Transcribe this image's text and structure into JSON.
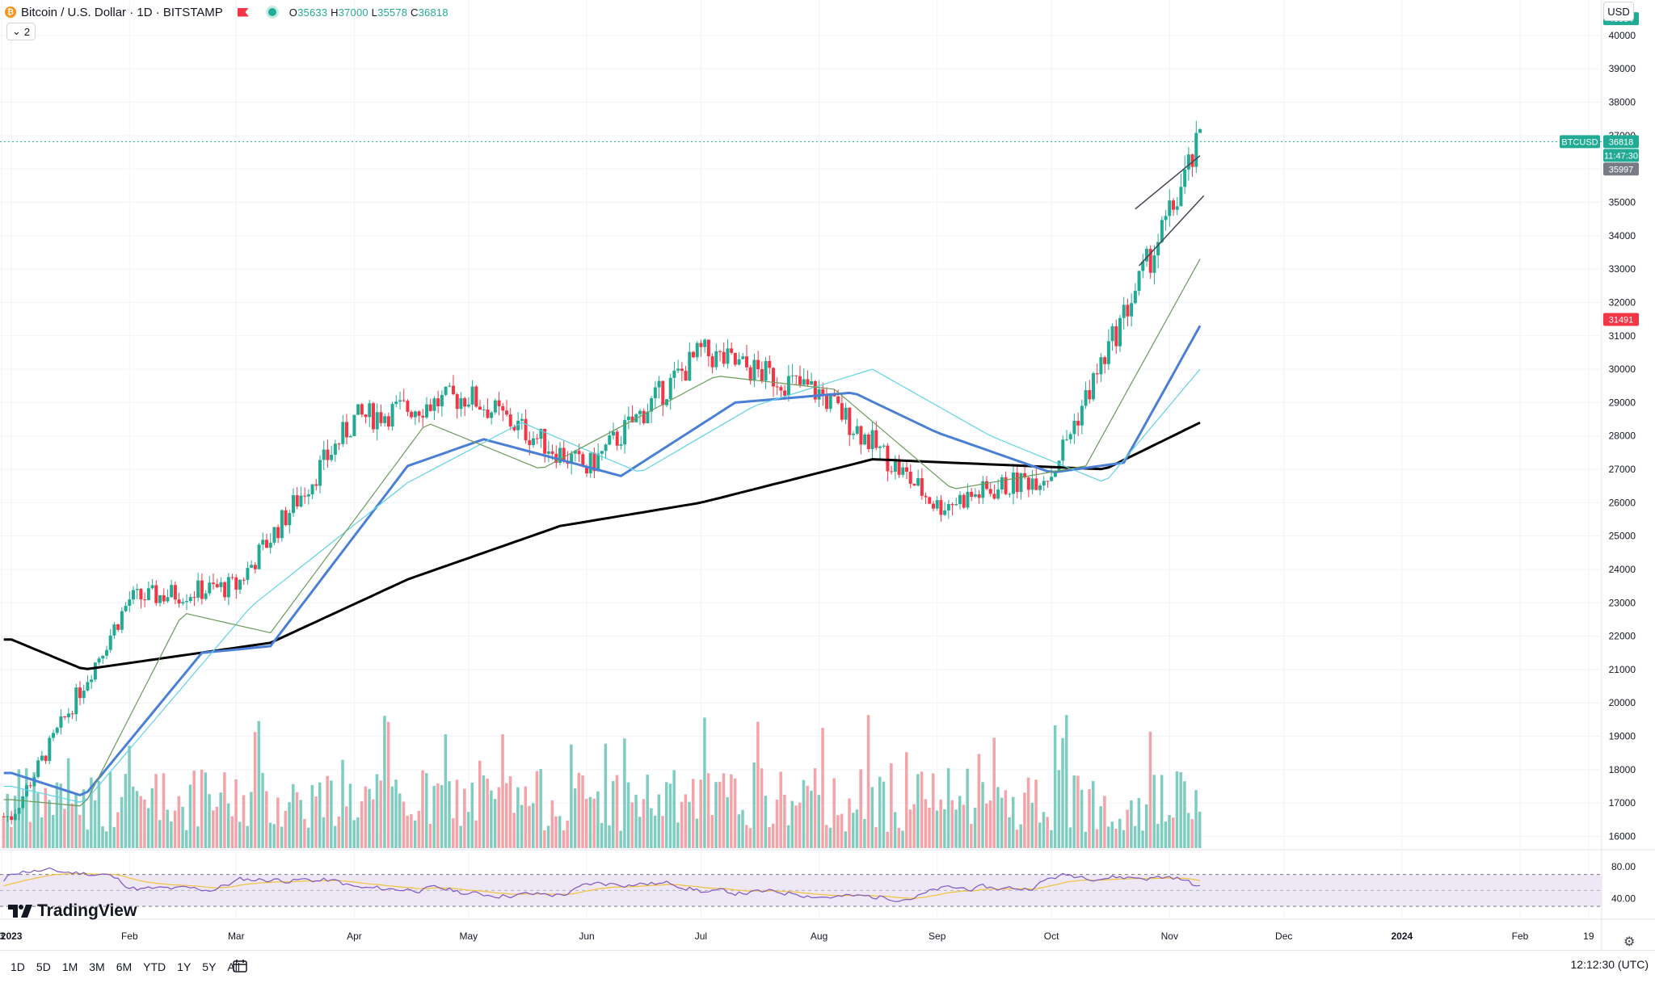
{
  "header": {
    "symbol_title": "Bitcoin / U.S. Dollar · 1D · BITSTAMP",
    "ohlc": {
      "o_label": "O",
      "o": "35633",
      "h_label": "H",
      "h": "37000",
      "l_label": "L",
      "l": "35578",
      "c_label": "C",
      "c": "36818"
    },
    "indicators_count": "2",
    "currency_button": "USD"
  },
  "chart_data": {
    "type": "candlestick",
    "symbol": "BTCUSD",
    "price_axis_ticks": [
      16000,
      17000,
      18000,
      19000,
      20000,
      21000,
      22000,
      23000,
      24000,
      25000,
      26000,
      27000,
      28000,
      29000,
      30000,
      31000,
      32000,
      33000,
      34000,
      35000,
      36000,
      37000,
      38000,
      39000,
      40000
    ],
    "ylim": [
      15600,
      40700
    ],
    "x_axis_labels": [
      "3",
      "2023",
      "Feb",
      "Mar",
      "Apr",
      "May",
      "Jun",
      "Jul",
      "Aug",
      "Sep",
      "Oct",
      "Nov",
      "Dec",
      "2024",
      "Feb",
      "19"
    ],
    "price_labels": [
      {
        "text": "40504",
        "color": "#22ab94"
      },
      {
        "text": "BTCUSD",
        "color": "#22ab94"
      },
      {
        "text": "36818",
        "color": "#22ab94"
      },
      {
        "text": "11:47:30",
        "color": "#22ab94"
      },
      {
        "text": "35997",
        "color": "#787b86"
      },
      {
        "text": "31491",
        "color": "#f23645"
      }
    ],
    "last_price": 36818,
    "price_series_monthly_closes": [
      {
        "date": "2023-01-01",
        "value": 16600
      },
      {
        "date": "2023-02-01",
        "value": 23100
      },
      {
        "date": "2023-03-01",
        "value": 23500
      },
      {
        "date": "2023-04-01",
        "value": 28500
      },
      {
        "date": "2023-05-01",
        "value": 29200
      },
      {
        "date": "2023-06-01",
        "value": 27000
      },
      {
        "date": "2023-07-01",
        "value": 30500
      },
      {
        "date": "2023-08-01",
        "value": 29300
      },
      {
        "date": "2023-09-01",
        "value": 25900
      },
      {
        "date": "2023-10-01",
        "value": 26900
      },
      {
        "date": "2023-11-01",
        "value": 34600
      },
      {
        "date": "2023-11-09",
        "value": 36818
      }
    ],
    "moving_averages": [
      {
        "name": "",
        "color": "#000000",
        "points": [
          {
            "date": "2023-01-01",
            "value": 21900
          },
          {
            "date": "2023-01-20",
            "value": 21000
          },
          {
            "date": "2023-03-10",
            "value": 21800
          },
          {
            "date": "2023-04-15",
            "value": 23700
          },
          {
            "date": "2023-05-25",
            "value": 25300
          },
          {
            "date": "2023-07-01",
            "value": 26000
          },
          {
            "date": "2023-08-15",
            "value": 27300
          },
          {
            "date": "2023-10-15",
            "value": 27000
          },
          {
            "date": "2023-11-09",
            "value": 28400
          }
        ]
      },
      {
        "name": "",
        "color": "#4a7fd6",
        "points": [
          {
            "date": "2023-01-01",
            "value": 17900
          },
          {
            "date": "2023-01-20",
            "value": 17200
          },
          {
            "date": "2023-02-20",
            "value": 21500
          },
          {
            "date": "2023-03-10",
            "value": 21700
          },
          {
            "date": "2023-04-15",
            "value": 27100
          },
          {
            "date": "2023-05-05",
            "value": 27900
          },
          {
            "date": "2023-06-10",
            "value": 26800
          },
          {
            "date": "2023-07-10",
            "value": 29000
          },
          {
            "date": "2023-08-10",
            "value": 29300
          },
          {
            "date": "2023-09-01",
            "value": 28100
          },
          {
            "date": "2023-10-01",
            "value": 26900
          },
          {
            "date": "2023-10-20",
            "value": 27200
          },
          {
            "date": "2023-11-09",
            "value": 31300
          }
        ]
      },
      {
        "name": "",
        "color": "#5fd3e6",
        "points": [
          {
            "date": "2023-01-01",
            "value": 17500
          },
          {
            "date": "2023-01-20",
            "value": 17000
          },
          {
            "date": "2023-03-05",
            "value": 22900
          },
          {
            "date": "2023-04-15",
            "value": 26600
          },
          {
            "date": "2023-05-15",
            "value": 28400
          },
          {
            "date": "2023-06-15",
            "value": 26900
          },
          {
            "date": "2023-07-15",
            "value": 28900
          },
          {
            "date": "2023-08-15",
            "value": 30000
          },
          {
            "date": "2023-09-15",
            "value": 28000
          },
          {
            "date": "2023-10-15",
            "value": 26600
          },
          {
            "date": "2023-11-09",
            "value": 30000
          }
        ]
      },
      {
        "name": "",
        "color": "#6a9a5a",
        "points": [
          {
            "date": "2023-01-01",
            "value": 17100
          },
          {
            "date": "2023-01-20",
            "value": 16900
          },
          {
            "date": "2023-02-15",
            "value": 22700
          },
          {
            "date": "2023-03-10",
            "value": 22100
          },
          {
            "date": "2023-04-20",
            "value": 28400
          },
          {
            "date": "2023-05-20",
            "value": 27000
          },
          {
            "date": "2023-07-05",
            "value": 29800
          },
          {
            "date": "2023-08-05",
            "value": 29400
          },
          {
            "date": "2023-09-05",
            "value": 26400
          },
          {
            "date": "2023-10-10",
            "value": 27100
          },
          {
            "date": "2023-11-09",
            "value": 33300
          }
        ]
      }
    ],
    "channel": {
      "color": "#434651",
      "upper": [
        {
          "date": "2023-10-23",
          "value": 34800
        },
        {
          "date": "2023-11-09",
          "value": 36400
        }
      ],
      "lower": [
        {
          "date": "2023-10-24",
          "value": 33100
        },
        {
          "date": "2023-11-10",
          "value": 35200
        }
      ]
    },
    "volume": {
      "colors": {
        "up": "#7fccc0",
        "down": "#f4a3a8"
      }
    },
    "rsi_pane": {
      "ticks": [
        "80.00",
        "40.00"
      ],
      "band": [
        30,
        70
      ],
      "ylim": [
        20,
        95
      ],
      "rsi_color": "#7e57c2",
      "signal_color": "#f0c23b",
      "band_color": "#ede7f6"
    },
    "grid": true
  },
  "toolbar": {
    "timeframes": [
      "1D",
      "5D",
      "1M",
      "3M",
      "6M",
      "YTD",
      "1Y",
      "5Y",
      "All"
    ],
    "clock": "12:12:30 (UTC)"
  },
  "branding": {
    "logo_text": "TradingView"
  }
}
